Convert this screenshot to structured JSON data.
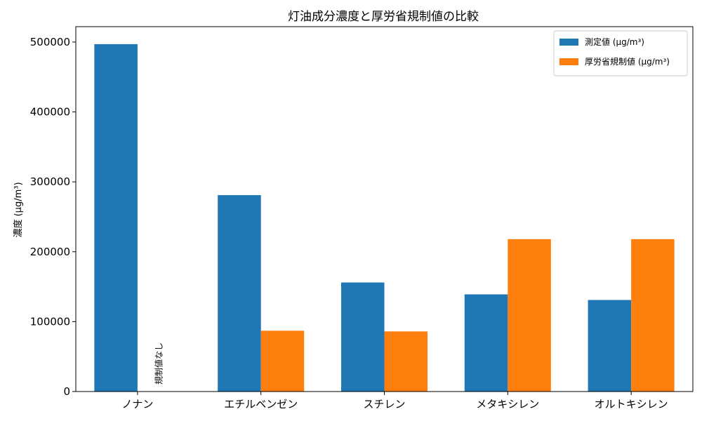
{
  "chart_data": {
    "type": "bar",
    "title": "灯油成分濃度と厚労省規制値の比較",
    "ylabel": "濃度 (μg/m³)",
    "xlabel": "",
    "categories": [
      "ノナン",
      "エチルベンゼン",
      "スチレン",
      "メタキシレン",
      "オルトキシレン"
    ],
    "series": [
      {
        "name": "測定値 (μg/m³)",
        "color": "#1f77b4",
        "values": [
          497000,
          281000,
          156000,
          139000,
          131000
        ]
      },
      {
        "name": "厚労省規制値 (μg/m³)",
        "color": "#ff7f0e",
        "values": [
          null,
          87000,
          86000,
          218000,
          218000
        ]
      }
    ],
    "ylim": [
      0,
      522000
    ],
    "yticks": [
      0,
      100000,
      200000,
      300000,
      400000,
      500000
    ],
    "ytick_labels": [
      "0",
      "100000",
      "200000",
      "300000",
      "400000",
      "500000"
    ],
    "annotation": {
      "text": "規制値なし",
      "category": "ノナン",
      "series": "厚労省規制値 (μg/m³)"
    },
    "legend_position": "top-right",
    "grid": false
  }
}
